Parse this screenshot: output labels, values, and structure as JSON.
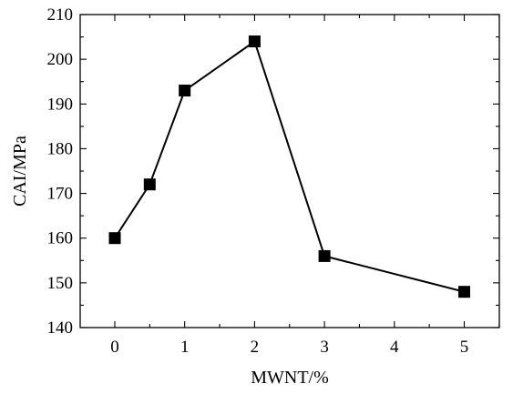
{
  "chart_data": {
    "type": "line",
    "title": "",
    "xlabel": "MWNT/%",
    "ylabel": "CAI/MPa",
    "x_categories": [
      "0",
      "1",
      "2",
      "3",
      "4",
      "5"
    ],
    "y_ticks": [
      140,
      150,
      160,
      170,
      180,
      190,
      200,
      210
    ],
    "ylim": [
      140,
      210
    ],
    "grid": false,
    "legend": "none",
    "marker": "square",
    "series": [
      {
        "points": [
          {
            "x": 0,
            "y": 160
          },
          {
            "x": 0.5,
            "y": 172
          },
          {
            "x": 1,
            "y": 193
          },
          {
            "x": 2,
            "y": 204
          },
          {
            "x": 3,
            "y": 156
          },
          {
            "x": 5,
            "y": 148
          }
        ],
        "color": "#000000"
      }
    ]
  }
}
